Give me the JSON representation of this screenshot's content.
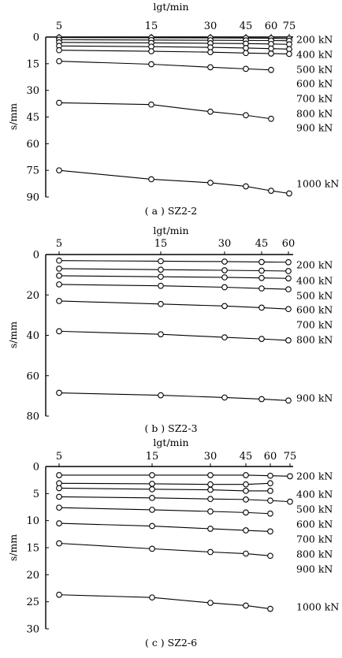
{
  "chart_data": [
    {
      "type": "line",
      "caption": "( a ) SZ2-2",
      "xlabel": "lgt/min",
      "ylabel": "s/mm",
      "x_ticks": [
        5,
        15,
        30,
        45,
        60,
        75
      ],
      "y_ticks": [
        0,
        15,
        30,
        45,
        60,
        75,
        90
      ],
      "ylim": [
        0,
        90
      ],
      "grid": false,
      "legend_labels": [
        "200 kN",
        "400 kN",
        "500 kN",
        "600 kN",
        "700 kN",
        "800 kN",
        "900 kN",
        "1000 kN"
      ],
      "series": [
        {
          "name": "",
          "x": [
            5,
            15,
            30,
            45,
            60,
            75
          ],
          "y": [
            0.3,
            0.4,
            0.5,
            0.6,
            0.7,
            0.9
          ]
        },
        {
          "name": "",
          "x": [
            5,
            15,
            30,
            45,
            60,
            75
          ],
          "y": [
            1.5,
            1.7,
            1.8,
            1.9,
            2.0,
            2.1
          ]
        },
        {
          "name": "",
          "x": [
            5,
            15,
            30,
            45,
            60,
            75
          ],
          "y": [
            3.0,
            3.3,
            3.5,
            3.7,
            3.9,
            4.1
          ]
        },
        {
          "name": "",
          "x": [
            5,
            15,
            30,
            45,
            60,
            75
          ],
          "y": [
            5.0,
            5.4,
            5.8,
            6.2,
            6.5,
            6.8
          ]
        },
        {
          "name": "",
          "x": [
            5,
            15,
            30,
            45,
            60,
            75
          ],
          "y": [
            7.4,
            8.0,
            8.5,
            9.0,
            9.3,
            9.5
          ]
        },
        {
          "name": "",
          "x": [
            5,
            15,
            30,
            45,
            60
          ],
          "y": [
            13.6,
            15.3,
            17.0,
            17.9,
            18.5
          ]
        },
        {
          "name": "",
          "x": [
            5,
            15,
            30,
            45,
            60
          ],
          "y": [
            37.0,
            38.0,
            42.0,
            44.0,
            46.0
          ]
        },
        {
          "name": "",
          "x": [
            5,
            15,
            30,
            45,
            60,
            75
          ],
          "y": [
            75.0,
            80.0,
            82.0,
            84.0,
            86.5,
            88.0
          ]
        }
      ]
    },
    {
      "type": "line",
      "caption": "( b ) SZ2-3",
      "xlabel": "lgt/min",
      "ylabel": "s/mm",
      "x_ticks": [
        5,
        15,
        30,
        45,
        60
      ],
      "y_ticks": [
        0,
        20,
        40,
        60,
        80
      ],
      "ylim": [
        0,
        80
      ],
      "grid": false,
      "legend_labels": [
        "200 kN",
        "400 kN",
        "500 kN",
        "600 kN",
        "700 kN",
        "800 kN",
        "900 kN"
      ],
      "series": [
        {
          "name": "",
          "x": [
            5,
            15,
            30,
            45,
            60
          ],
          "y": [
            3.0,
            3.3,
            3.5,
            3.7,
            3.8
          ]
        },
        {
          "name": "",
          "x": [
            5,
            15,
            30,
            45,
            60
          ],
          "y": [
            7.0,
            7.5,
            7.8,
            8.0,
            8.2
          ]
        },
        {
          "name": "",
          "x": [
            5,
            15,
            30,
            45,
            60
          ],
          "y": [
            10.5,
            11.0,
            11.3,
            11.6,
            11.8
          ]
        },
        {
          "name": "",
          "x": [
            5,
            15,
            30,
            45,
            60
          ],
          "y": [
            14.8,
            15.5,
            16.2,
            16.8,
            17.2
          ]
        },
        {
          "name": "",
          "x": [
            5,
            15,
            30,
            45,
            60
          ],
          "y": [
            23.0,
            24.5,
            25.5,
            26.3,
            27.0
          ]
        },
        {
          "name": "",
          "x": [
            5,
            15,
            30,
            45,
            60
          ],
          "y": [
            38.0,
            39.5,
            41.0,
            41.8,
            42.5
          ]
        },
        {
          "name": "",
          "x": [
            5,
            15,
            30,
            45,
            60
          ],
          "y": [
            68.5,
            69.7,
            70.8,
            71.6,
            72.3
          ]
        }
      ]
    },
    {
      "type": "line",
      "caption": "( c ) SZ2-6",
      "xlabel": "lgt/min",
      "ylabel": "s/mm",
      "x_ticks": [
        5,
        15,
        30,
        45,
        60,
        75
      ],
      "y_ticks": [
        0,
        5,
        10,
        15,
        20,
        25,
        30
      ],
      "ylim": [
        0,
        30
      ],
      "grid": false,
      "legend_labels": [
        "200 kN",
        "400 kN",
        "500 kN",
        "600 kN",
        "700 kN",
        "800 kN",
        "900 kN",
        "1000 kN"
      ],
      "series": [
        {
          "name": "",
          "x": [
            5,
            15,
            30,
            45,
            60,
            75
          ],
          "y": [
            1.6,
            1.6,
            1.6,
            1.6,
            1.7,
            1.8
          ]
        },
        {
          "name": "",
          "x": [
            5,
            15,
            30,
            45,
            60
          ],
          "y": [
            3.1,
            3.2,
            3.3,
            3.3,
            3.1
          ]
        },
        {
          "name": "",
          "x": [
            5,
            15,
            30,
            45,
            60
          ],
          "y": [
            4.0,
            4.2,
            4.3,
            4.5,
            4.5
          ]
        },
        {
          "name": "",
          "x": [
            5,
            15,
            30,
            45,
            60,
            75
          ],
          "y": [
            5.6,
            5.8,
            6.0,
            6.1,
            6.3,
            6.5
          ]
        },
        {
          "name": "",
          "x": [
            5,
            15,
            30,
            45,
            60
          ],
          "y": [
            7.6,
            8.0,
            8.3,
            8.5,
            8.7
          ]
        },
        {
          "name": "",
          "x": [
            5,
            15,
            30,
            45,
            60
          ],
          "y": [
            10.5,
            11.0,
            11.5,
            11.8,
            12.0
          ]
        },
        {
          "name": "",
          "x": [
            5,
            15,
            30,
            45,
            60
          ],
          "y": [
            14.2,
            15.2,
            15.8,
            16.1,
            16.5
          ]
        },
        {
          "name": "",
          "x": [
            5,
            15,
            30,
            45,
            60
          ],
          "y": [
            23.7,
            24.2,
            25.2,
            25.7,
            26.3
          ]
        }
      ]
    }
  ]
}
